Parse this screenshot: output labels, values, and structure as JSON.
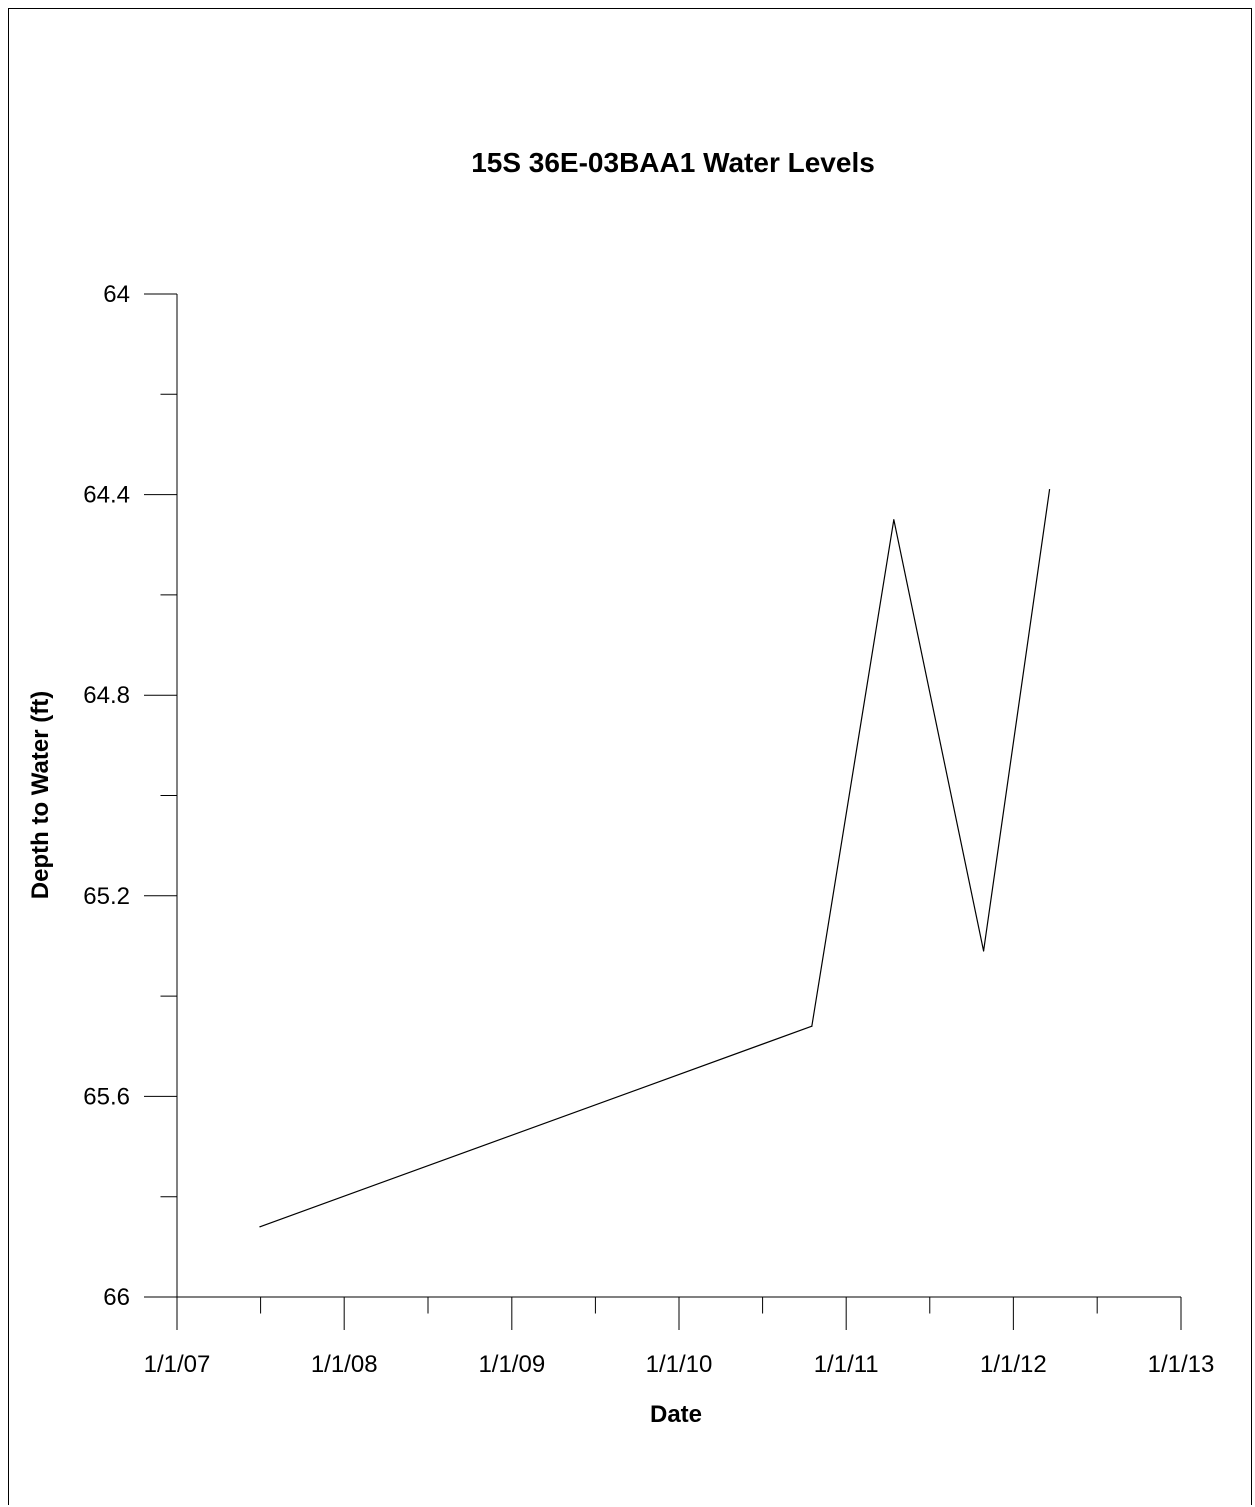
{
  "chart_data": {
    "type": "line",
    "title": "15S 36E-03BAA1 Water Levels",
    "xlabel": "Date",
    "ylabel": "Depth to Water (ft)",
    "x_axis": {
      "kind": "date",
      "range": [
        "2007-01-01",
        "2013-01-01"
      ],
      "major_ticks": [
        "2007-01-01",
        "2008-01-01",
        "2009-01-01",
        "2010-01-01",
        "2011-01-01",
        "2012-01-01",
        "2013-01-01"
      ],
      "major_tick_labels": [
        "1/1/07",
        "1/1/08",
        "1/1/09",
        "1/1/10",
        "1/1/11",
        "1/1/12",
        "1/1/13"
      ],
      "minor_ticks_between_majors": 1
    },
    "y_axis": {
      "range": [
        64,
        66
      ],
      "inverted": true,
      "major_ticks": [
        64,
        64.4,
        64.8,
        65.2,
        65.6,
        66
      ],
      "major_tick_labels": [
        "64",
        "64.4",
        "64.8",
        "65.2",
        "65.6",
        "66"
      ],
      "minor_ticks_between_majors": 1
    },
    "grid": false,
    "legend": "none",
    "series": [
      {
        "color": "#000000",
        "points": [
          {
            "x": "2007-07-01",
            "y": 65.86
          },
          {
            "x": "2010-10-18",
            "y": 65.46
          },
          {
            "x": "2011-04-15",
            "y": 64.45
          },
          {
            "x": "2011-10-28",
            "y": 65.31
          },
          {
            "x": "2012-03-20",
            "y": 64.39
          }
        ]
      }
    ]
  }
}
